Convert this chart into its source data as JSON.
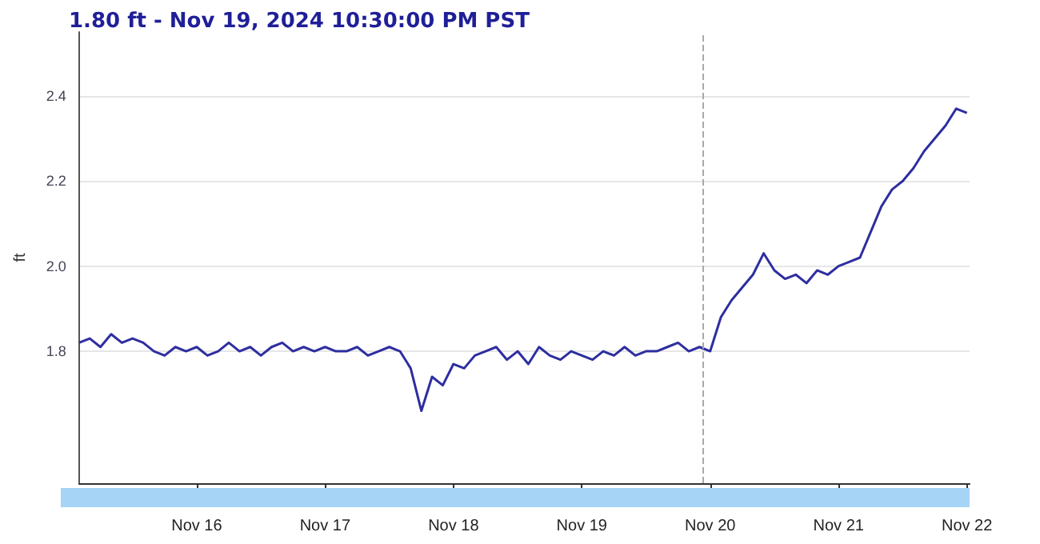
{
  "chart_data": {
    "type": "line",
    "title": "1.80 ft - Nov 19, 2024 10:30:00 PM PST",
    "ylabel": "ft",
    "x": [
      "2024-11-15T02:00",
      "2024-11-15T04:00",
      "2024-11-15T06:00",
      "2024-11-15T08:00",
      "2024-11-15T10:00",
      "2024-11-15T12:00",
      "2024-11-15T14:00",
      "2024-11-15T16:00",
      "2024-11-15T18:00",
      "2024-11-15T20:00",
      "2024-11-15T22:00",
      "2024-11-16T00:00",
      "2024-11-16T02:00",
      "2024-11-16T04:00",
      "2024-11-16T06:00",
      "2024-11-16T08:00",
      "2024-11-16T10:00",
      "2024-11-16T12:00",
      "2024-11-16T14:00",
      "2024-11-16T16:00",
      "2024-11-16T18:00",
      "2024-11-16T20:00",
      "2024-11-16T22:00",
      "2024-11-17T00:00",
      "2024-11-17T02:00",
      "2024-11-17T04:00",
      "2024-11-17T06:00",
      "2024-11-17T08:00",
      "2024-11-17T10:00",
      "2024-11-17T12:00",
      "2024-11-17T14:00",
      "2024-11-17T16:00",
      "2024-11-17T18:00",
      "2024-11-17T20:00",
      "2024-11-17T22:00",
      "2024-11-18T00:00",
      "2024-11-18T02:00",
      "2024-11-18T04:00",
      "2024-11-18T06:00",
      "2024-11-18T08:00",
      "2024-11-18T10:00",
      "2024-11-18T12:00",
      "2024-11-18T14:00",
      "2024-11-18T16:00",
      "2024-11-18T18:00",
      "2024-11-18T20:00",
      "2024-11-18T22:00",
      "2024-11-19T00:00",
      "2024-11-19T02:00",
      "2024-11-19T04:00",
      "2024-11-19T06:00",
      "2024-11-19T08:00",
      "2024-11-19T10:00",
      "2024-11-19T12:00",
      "2024-11-19T14:00",
      "2024-11-19T16:00",
      "2024-11-19T18:00",
      "2024-11-19T20:00",
      "2024-11-19T22:00",
      "2024-11-20T00:00",
      "2024-11-20T02:00",
      "2024-11-20T04:00",
      "2024-11-20T06:00",
      "2024-11-20T08:00",
      "2024-11-20T10:00",
      "2024-11-20T12:00",
      "2024-11-20T14:00",
      "2024-11-20T16:00",
      "2024-11-20T18:00",
      "2024-11-20T20:00",
      "2024-11-20T22:00",
      "2024-11-21T00:00",
      "2024-11-21T02:00",
      "2024-11-21T04:00",
      "2024-11-21T06:00",
      "2024-11-21T08:00",
      "2024-11-21T10:00",
      "2024-11-21T12:00",
      "2024-11-21T14:00",
      "2024-11-21T16:00",
      "2024-11-21T18:00",
      "2024-11-21T20:00",
      "2024-11-21T22:00",
      "2024-11-22T00:00"
    ],
    "series": [
      {
        "color": "#2e2ea0",
        "values": [
          1.82,
          1.83,
          1.81,
          1.84,
          1.82,
          1.83,
          1.82,
          1.8,
          1.79,
          1.81,
          1.8,
          1.81,
          1.79,
          1.8,
          1.82,
          1.8,
          1.81,
          1.79,
          1.81,
          1.82,
          1.8,
          1.81,
          1.8,
          1.81,
          1.8,
          1.8,
          1.81,
          1.79,
          1.8,
          1.81,
          1.8,
          1.76,
          1.66,
          1.74,
          1.72,
          1.77,
          1.76,
          1.79,
          1.8,
          1.81,
          1.78,
          1.8,
          1.77,
          1.81,
          1.79,
          1.78,
          1.8,
          1.79,
          1.78,
          1.8,
          1.79,
          1.81,
          1.79,
          1.8,
          1.8,
          1.81,
          1.82,
          1.8,
          1.81,
          1.8,
          1.88,
          1.92,
          1.95,
          1.98,
          2.03,
          1.99,
          1.97,
          1.98,
          1.96,
          1.99,
          1.98,
          2.0,
          2.01,
          2.02,
          2.08,
          2.14,
          2.18,
          2.2,
          2.23,
          2.27,
          2.3,
          2.33,
          2.37,
          2.36
        ]
      }
    ],
    "xlim": [
      "2024-11-15T02:00",
      "2024-11-22T00:30"
    ],
    "xticks": [
      {
        "value": "2024-11-16",
        "label": "Nov 16"
      },
      {
        "value": "2024-11-17",
        "label": "Nov 17"
      },
      {
        "value": "2024-11-18",
        "label": "Nov 18"
      },
      {
        "value": "2024-11-19",
        "label": "Nov 19"
      },
      {
        "value": "2024-11-20",
        "label": "Nov 20"
      },
      {
        "value": "2024-11-21",
        "label": "Nov 21"
      },
      {
        "value": "2024-11-22",
        "label": "Nov 22"
      }
    ],
    "ylim": [
      1.49,
      2.55
    ],
    "yticks": [
      1.8,
      {
        "value": 2,
        "label": "2.0"
      },
      2.2,
      2.4
    ],
    "grid": "y",
    "marker": "none",
    "line_style": "solid",
    "ref_lines": [
      {
        "axis": "x",
        "value": "2024-11-19T22:30",
        "color": "#aaaaaa",
        "line_style": "dashed"
      }
    ]
  }
}
